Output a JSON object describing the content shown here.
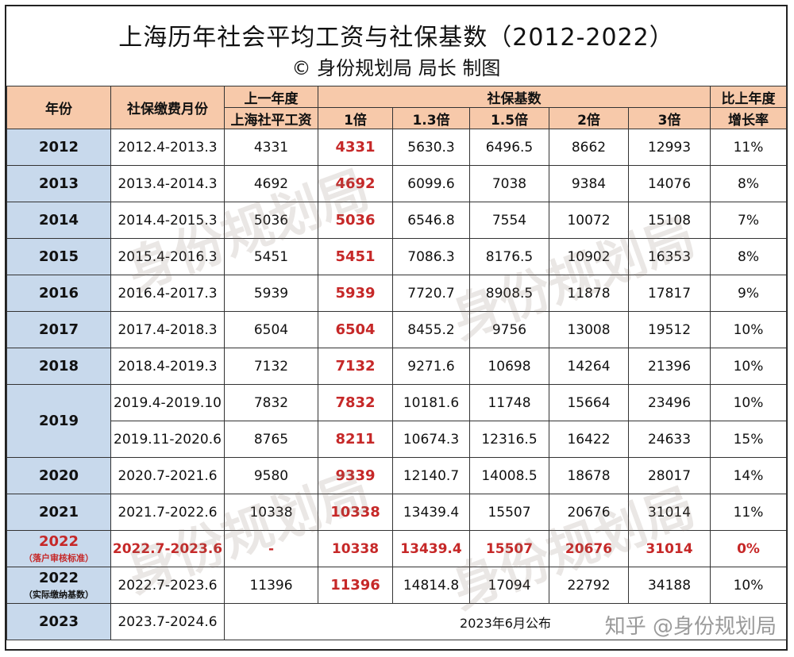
{
  "title": "上海历年社会平均工资与社保基数（2012-2022）",
  "subtitle": "© 身份规划局 局长 制图",
  "headers": {
    "year": "年份",
    "month": "社保缴费月份",
    "avg_line1": "上一年度",
    "avg_line2": "上海社平工资",
    "base_group": "社保基数",
    "m1": "1倍",
    "m13": "1.3倍",
    "m15": "1.5倍",
    "m2": "2倍",
    "m3": "3倍",
    "growth_line1": "比上年度",
    "growth_line2": "增长率"
  },
  "rows": [
    {
      "year": "2012",
      "period": "2012.4-2013.3",
      "avg": "4331",
      "b1": "4331",
      "b13": "5630.3",
      "b15": "6496.5",
      "b2": "8662",
      "b3": "12993",
      "growth": "11%"
    },
    {
      "year": "2013",
      "period": "2013.4-2014.3",
      "avg": "4692",
      "b1": "4692",
      "b13": "6099.6",
      "b15": "7038",
      "b2": "9384",
      "b3": "14076",
      "growth": "8%"
    },
    {
      "year": "2014",
      "period": "2014.4-2015.3",
      "avg": "5036",
      "b1": "5036",
      "b13": "6546.8",
      "b15": "7554",
      "b2": "10072",
      "b3": "15108",
      "growth": "7%"
    },
    {
      "year": "2015",
      "period": "2015.4-2016.3",
      "avg": "5451",
      "b1": "5451",
      "b13": "7086.3",
      "b15": "8176.5",
      "b2": "10902",
      "b3": "16353",
      "growth": "8%"
    },
    {
      "year": "2016",
      "period": "2016.4-2017.3",
      "avg": "5939",
      "b1": "5939",
      "b13": "7720.7",
      "b15": "8908.5",
      "b2": "11878",
      "b3": "17817",
      "growth": "9%"
    },
    {
      "year": "2017",
      "period": "2017.4-2018.3",
      "avg": "6504",
      "b1": "6504",
      "b13": "8455.2",
      "b15": "9756",
      "b2": "13008",
      "b3": "19512",
      "growth": "10%"
    },
    {
      "year": "2018",
      "period": "2018.4-2019.3",
      "avg": "7132",
      "b1": "7132",
      "b13": "9271.6",
      "b15": "10698",
      "b2": "14264",
      "b3": "21396",
      "growth": "10%"
    },
    {
      "year": "2019",
      "period": "2019.4-2019.10",
      "avg": "7832",
      "b1": "7832",
      "b13": "10181.6",
      "b15": "11748",
      "b2": "15664",
      "b3": "23496",
      "growth": "10%"
    },
    {
      "year": "",
      "period": "2019.11-2020.6",
      "avg": "8765",
      "b1": "8211",
      "b13": "10674.3",
      "b15": "12316.5",
      "b2": "16422",
      "b3": "24633",
      "growth": "15%"
    },
    {
      "year": "2020",
      "period": "2020.7-2021.6",
      "avg": "9580",
      "b1": "9339",
      "b13": "12140.7",
      "b15": "14008.5",
      "b2": "18678",
      "b3": "28017",
      "growth": "14%"
    },
    {
      "year": "2021",
      "period": "2021.7-2022.6",
      "avg": "10338",
      "b1": "10338",
      "b13": "13439.4",
      "b15": "15507",
      "b2": "20676",
      "b3": "31014",
      "growth": "11%"
    },
    {
      "year": "2022",
      "year_note": "（落户审核标准）",
      "period": "2022.7-2023.6",
      "avg": "-",
      "b1": "10338",
      "b13": "13439.4",
      "b15": "15507",
      "b2": "20676",
      "b3": "31014",
      "growth": "0%"
    },
    {
      "year": "2022",
      "year_note": "（实际缴纳基数）",
      "period": "2022.7-2023.6",
      "avg": "11396",
      "b1": "11396",
      "b13": "14814.8",
      "b15": "17094",
      "b2": "22792",
      "b3": "34188",
      "growth": "10%"
    },
    {
      "year": "2023",
      "period": "2023.7-2024.6",
      "publish": "2023年6月公布"
    }
  ],
  "watermark": {
    "text": "身份规划局",
    "zhihu": "知乎 @身份规划局"
  },
  "colors": {
    "header_bg": "#f7c9aa",
    "year_bg": "#c8d9ec",
    "highlight": "#c62828"
  }
}
